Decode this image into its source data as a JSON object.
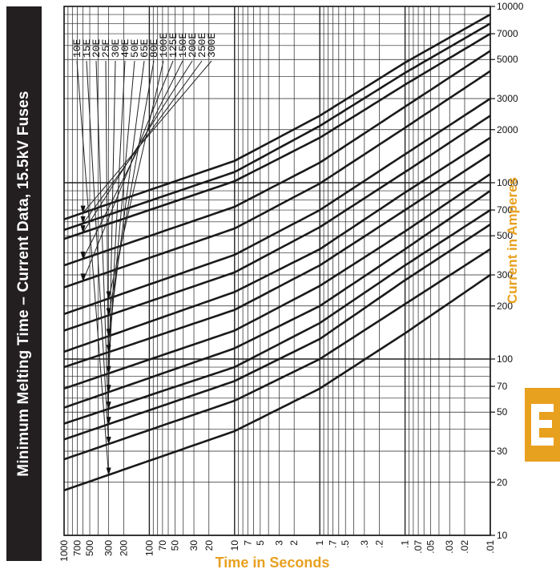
{
  "title": "Minimum Melting Time – Current Data,   15.5kV Fuses",
  "chart_data": {
    "type": "line",
    "title": "Minimum Melting Time – Current Data,   15.5kV Fuses",
    "xlabel": "Time in Seconds",
    "ylabel": "Current in Amperes",
    "x_scale": "log",
    "x_reversed": true,
    "xlim": [
      1000,
      0.01
    ],
    "y_scale": "log",
    "ylim": [
      10,
      10000
    ],
    "grid": true,
    "x_ticks": [
      {
        "v": 1000,
        "l": "1000"
      },
      {
        "v": 700,
        "l": "700"
      },
      {
        "v": 500,
        "l": "500"
      },
      {
        "v": 300,
        "l": "300"
      },
      {
        "v": 200,
        "l": "200"
      },
      {
        "v": 100,
        "l": "100"
      },
      {
        "v": 70,
        "l": "70"
      },
      {
        "v": 50,
        "l": "50"
      },
      {
        "v": 30,
        "l": "30"
      },
      {
        "v": 20,
        "l": "20"
      },
      {
        "v": 10,
        "l": "10"
      },
      {
        "v": 7,
        "l": "7"
      },
      {
        "v": 5,
        "l": "5"
      },
      {
        "v": 3,
        "l": "3"
      },
      {
        "v": 2,
        "l": "2"
      },
      {
        "v": 1,
        "l": "1"
      },
      {
        "v": 0.7,
        "l": ".7"
      },
      {
        "v": 0.5,
        "l": ".5"
      },
      {
        "v": 0.3,
        "l": ".3"
      },
      {
        "v": 0.2,
        "l": ".2"
      },
      {
        "v": 0.1,
        "l": ".1"
      },
      {
        "v": 0.07,
        "l": ".07"
      },
      {
        "v": 0.05,
        "l": ".05"
      },
      {
        "v": 0.03,
        "l": ".03"
      },
      {
        "v": 0.02,
        "l": ".02"
      },
      {
        "v": 0.01,
        "l": ".01"
      }
    ],
    "y_ticks": [
      {
        "v": 10000,
        "l": "10000"
      },
      {
        "v": 7000,
        "l": "7000"
      },
      {
        "v": 5000,
        "l": "5000"
      },
      {
        "v": 3000,
        "l": "3000"
      },
      {
        "v": 2000,
        "l": "2000"
      },
      {
        "v": 1000,
        "l": "1000"
      },
      {
        "v": 700,
        "l": "700"
      },
      {
        "v": 500,
        "l": "500"
      },
      {
        "v": 300,
        "l": "300"
      },
      {
        "v": 200,
        "l": "200"
      },
      {
        "v": 100,
        "l": "100"
      },
      {
        "v": 70,
        "l": "70"
      },
      {
        "v": 50,
        "l": "50"
      },
      {
        "v": 30,
        "l": "30"
      },
      {
        "v": 20,
        "l": "20"
      },
      {
        "v": 10,
        "l": "10"
      }
    ],
    "series": [
      {
        "name": "10E",
        "t": 300,
        "x": [
          1000,
          10,
          1,
          0.1,
          0.01
        ],
        "y": [
          18,
          39,
          68,
          140,
          300
        ],
        "label_x": 88
      },
      {
        "name": "15E",
        "t": 300,
        "x": [
          1000,
          10,
          1,
          0.1,
          0.01
        ],
        "y": [
          27,
          58,
          100,
          205,
          420
        ],
        "label_x": 100
      },
      {
        "name": "20E",
        "t": 300,
        "x": [
          1000,
          10,
          1,
          0.1,
          0.01
        ],
        "y": [
          35,
          75,
          130,
          280,
          580
        ],
        "label_x": 112
      },
      {
        "name": "25E",
        "t": 300,
        "x": [
          1000,
          10,
          1,
          0.1,
          0.01
        ],
        "y": [
          43,
          90,
          160,
          340,
          700
        ],
        "label_x": 124
      },
      {
        "name": "30E",
        "t": 300,
        "x": [
          1000,
          10,
          1,
          0.1,
          0.01
        ],
        "y": [
          53,
          115,
          200,
          420,
          900
        ],
        "label_x": 136
      },
      {
        "name": "40E",
        "t": 300,
        "x": [
          1000,
          10,
          1,
          0.1,
          0.01
        ],
        "y": [
          68,
          145,
          260,
          530,
          1120
        ],
        "label_x": 148
      },
      {
        "name": "50E",
        "t": 300,
        "x": [
          1000,
          10,
          1,
          0.1,
          0.01
        ],
        "y": [
          90,
          190,
          340,
          700,
          1450
        ],
        "label_x": 160
      },
      {
        "name": "65E",
        "t": 300,
        "x": [
          1000,
          10,
          1,
          0.1,
          0.01
        ],
        "y": [
          110,
          240,
          420,
          880,
          1800
        ],
        "label_x": 172
      },
      {
        "name": "80E",
        "t": 300,
        "x": [
          1000,
          10,
          1,
          0.1,
          0.01
        ],
        "y": [
          145,
          310,
          560,
          1150,
          2400
        ],
        "label_x": 184
      },
      {
        "name": "100E",
        "t": 300,
        "x": [
          1000,
          10,
          1,
          0.1,
          0.01
        ],
        "y": [
          180,
          390,
          700,
          1450,
          3000
        ],
        "label_x": 196
      },
      {
        "name": "125E",
        "t": 600,
        "x": [
          1000,
          10,
          1,
          0.1,
          0.01
        ],
        "y": [
          255,
          550,
          990,
          2050,
          4300
        ],
        "label_x": 208
      },
      {
        "name": "150E",
        "t": 600,
        "x": [
          1000,
          10,
          1,
          0.1,
          0.01
        ],
        "y": [
          340,
          730,
          1300,
          2700,
          5600
        ],
        "label_x": 220
      },
      {
        "name": "200E",
        "t": 600,
        "x": [
          1000,
          10,
          1,
          0.1,
          0.01
        ],
        "y": [
          480,
          1020,
          1800,
          3600,
          7000
        ],
        "label_x": 232
      },
      {
        "name": "250E",
        "t": 600,
        "x": [
          1000,
          10,
          1,
          0.1,
          0.01
        ],
        "y": [
          540,
          1150,
          2100,
          4200,
          8000
        ],
        "label_x": 244
      },
      {
        "name": "300E",
        "t": 600,
        "x": [
          1000,
          10,
          1,
          0.1,
          0.01
        ],
        "y": [
          620,
          1330,
          2400,
          4800,
          9000
        ],
        "label_x": 256
      }
    ]
  },
  "section_tab": {
    "color": "#e8a01f",
    "glyph": "letter-E"
  },
  "colors": {
    "title_bar": "#231f20",
    "title_text": "#ffffff",
    "axis_label": "#e8a01f",
    "curve": "#1a1a1a",
    "grid": "#222222"
  }
}
